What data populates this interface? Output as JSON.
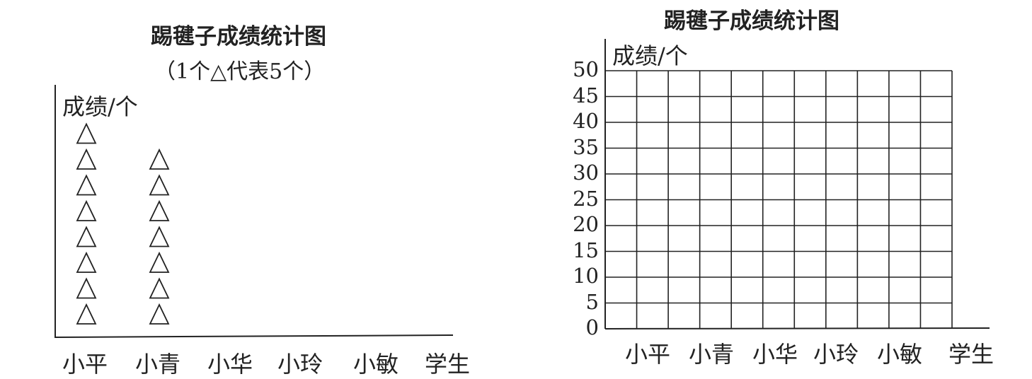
{
  "chart_data": [
    {
      "type": "pictograph",
      "title": "踢毽子成绩统计图",
      "subtitle": "（1个△代表5个）",
      "ylabel": "成绩/个",
      "xlabel": "学生",
      "symbol": "△",
      "symbol_value": 5,
      "categories": [
        "小平",
        "小青",
        "小华",
        "小玲",
        "小敏"
      ],
      "values": [
        40,
        35,
        null,
        null,
        null
      ]
    },
    {
      "type": "bar",
      "title": "踢毽子成绩统计图",
      "ylabel": "成绩/个",
      "xlabel": "学生",
      "categories": [
        "小平",
        "小青",
        "小华",
        "小玲",
        "小敏"
      ],
      "values": [
        null,
        null,
        null,
        null,
        null
      ],
      "ylim": [
        0,
        50
      ],
      "yticks": [
        "0",
        "5",
        "10",
        "15",
        "20",
        "25",
        "30",
        "35",
        "40",
        "45",
        "50"
      ],
      "grid": true
    }
  ]
}
